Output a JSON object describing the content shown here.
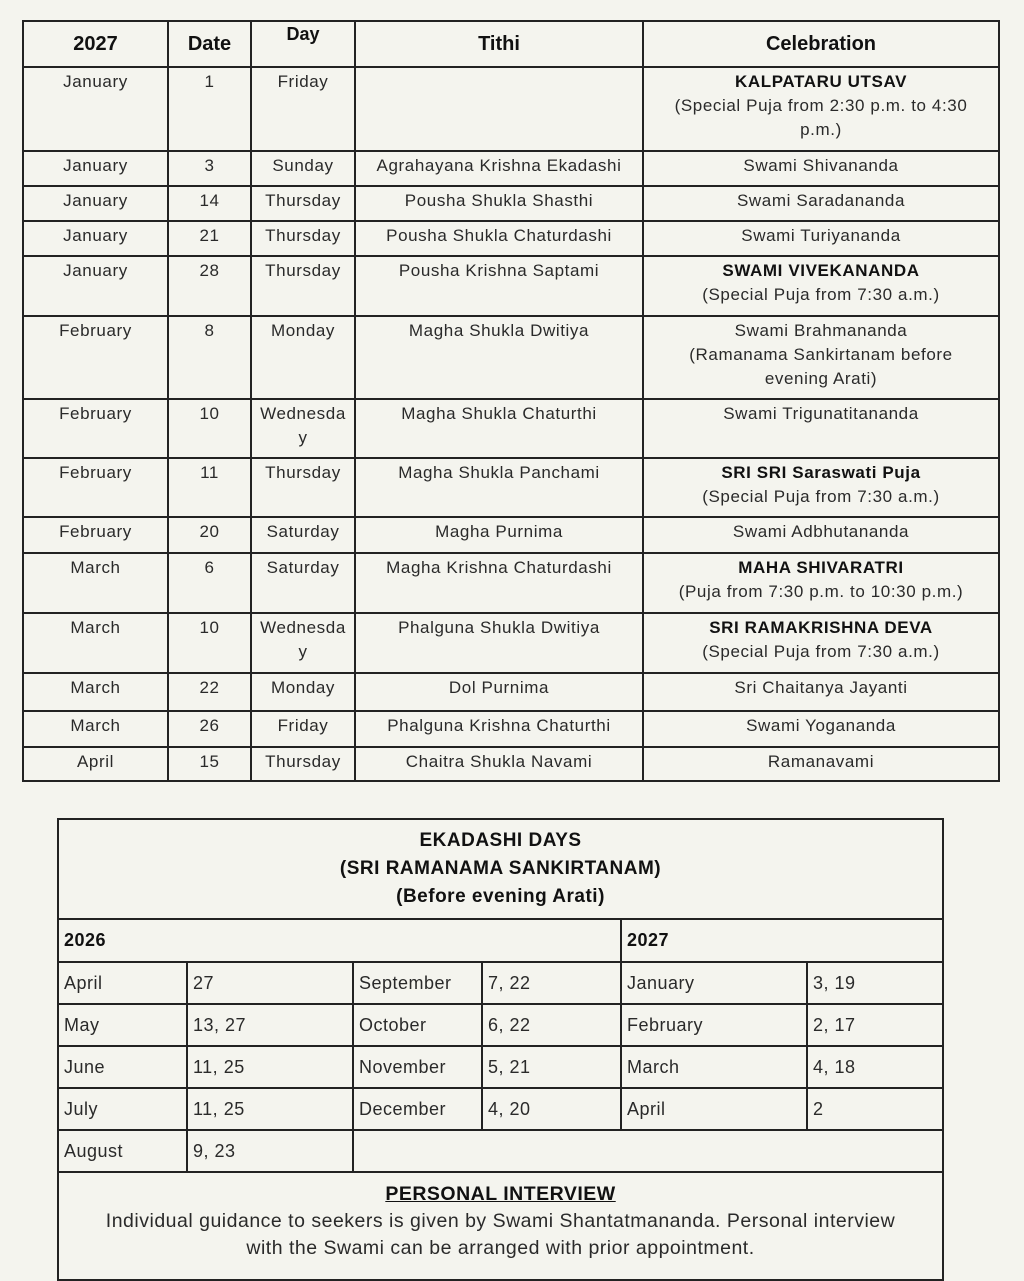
{
  "main_table": {
    "headers": [
      "2027",
      "Date",
      "Day",
      "Tithi",
      "Celebration"
    ],
    "rows": [
      {
        "month": "January",
        "date": "1",
        "day": "Friday",
        "tithi": "",
        "celebration": "KALPATARU UTSAV",
        "bold": true,
        "note": "(Special Puja from 2:30 p.m. to 4:30 p.m.)",
        "h": 86
      },
      {
        "month": "January",
        "date": "3",
        "day": "Sunday",
        "tithi": "Agrahayana Krishna Ekadashi",
        "celebration": "Swami Shivananda",
        "bold": false,
        "note": "",
        "h": 37
      },
      {
        "month": "January",
        "date": "14",
        "day": "Thursday",
        "tithi": "Pousha Shukla Shasthi",
        "celebration": "Swami Saradananda",
        "bold": false,
        "note": "",
        "h": 37
      },
      {
        "month": "January",
        "date": "21",
        "day": "Thursday",
        "tithi": "Pousha Shukla Chaturdashi",
        "celebration": "Swami Turiyananda",
        "bold": false,
        "note": "",
        "h": 37
      },
      {
        "month": "January",
        "date": "28",
        "day": "Thursday",
        "tithi": "Pousha Krishna Saptami",
        "celebration": "SWAMI VIVEKANANDA",
        "bold": true,
        "note": "(Special Puja from 7:30 a.m.)",
        "h": 62
      },
      {
        "month": "February",
        "date": "8",
        "day": "Monday",
        "tithi": "Magha Shukla Dwitiya",
        "celebration": "Swami Brahmananda",
        "bold": false,
        "note": "(Ramanama Sankirtanam before evening Arati)",
        "h": 85
      },
      {
        "month": "February",
        "date": "10",
        "day": "Wednesday",
        "tithi": "Magha Shukla Chaturthi",
        "celebration": "Swami Trigunatitananda",
        "bold": false,
        "note": "",
        "h": 61
      },
      {
        "month": "February",
        "date": "11",
        "day": "Thursday",
        "tithi": "Magha Shukla Panchami",
        "celebration": "SRI SRI Saraswati Puja",
        "bold": true,
        "note": "(Special Puja from 7:30 a.m.)",
        "h": 61
      },
      {
        "month": "February",
        "date": "20",
        "day": "Saturday",
        "tithi": "Magha Purnima",
        "celebration": "Swami Adbhutananda",
        "bold": false,
        "note": "",
        "h": 38
      },
      {
        "month": "March",
        "date": "6",
        "day": "Saturday",
        "tithi": "Magha Krishna Chaturdashi",
        "celebration": "MAHA SHIVARATRI",
        "bold": true,
        "note": "(Puja from 7:30 p.m. to 10:30 p.m.)",
        "h": 62
      },
      {
        "month": "March",
        "date": "10",
        "day": "Wednesday",
        "tithi": "Phalguna Shukla Dwitiya",
        "celebration": "SRI RAMAKRISHNA DEVA",
        "bold": true,
        "note": "(Special Puja from 7:30 a.m.)",
        "h": 62
      },
      {
        "month": "March",
        "date": "22",
        "day": "Monday",
        "tithi": "Dol Purnima",
        "celebration": "Sri Chaitanya Jayanti",
        "bold": false,
        "note": "",
        "h": 40
      },
      {
        "month": "March",
        "date": "26",
        "day": "Friday",
        "tithi": "Phalguna Krishna Chaturthi",
        "celebration": "Swami Yogananda",
        "bold": false,
        "note": "",
        "h": 38
      },
      {
        "month": "April",
        "date": "15",
        "day": "Thursday",
        "tithi": "Chaitra Shukla Navami",
        "celebration": "Ramanavami",
        "bold": false,
        "note": "",
        "h": 36
      }
    ]
  },
  "ekadashi": {
    "title": [
      "EKADASHI DAYS",
      "(SRI RAMANAMA SANKIRTANAM)",
      "(Before  evening Arati)"
    ],
    "year_2026": "2026",
    "year_2027": "2027",
    "rows": [
      [
        [
          "April",
          "27"
        ],
        [
          "September",
          "7, 22"
        ],
        [
          "January",
          "3, 19"
        ]
      ],
      [
        [
          "May",
          "13, 27"
        ],
        [
          "October",
          "6, 22"
        ],
        [
          "February",
          "2, 17"
        ]
      ],
      [
        [
          "June",
          "11, 25"
        ],
        [
          "November",
          "5, 21"
        ],
        [
          "March",
          "4, 18"
        ]
      ],
      [
        [
          "July",
          "11, 25"
        ],
        [
          "December",
          "4, 20"
        ],
        [
          "April",
          "2"
        ]
      ],
      [
        [
          "August",
          "9, 23"
        ]
      ]
    ]
  },
  "interview": {
    "heading": "PERSONAL INTERVIEW",
    "text": "Individual guidance to seekers is given by Swami Shantatmananda. Personal interview with the Swami can be arranged with prior appointment."
  }
}
